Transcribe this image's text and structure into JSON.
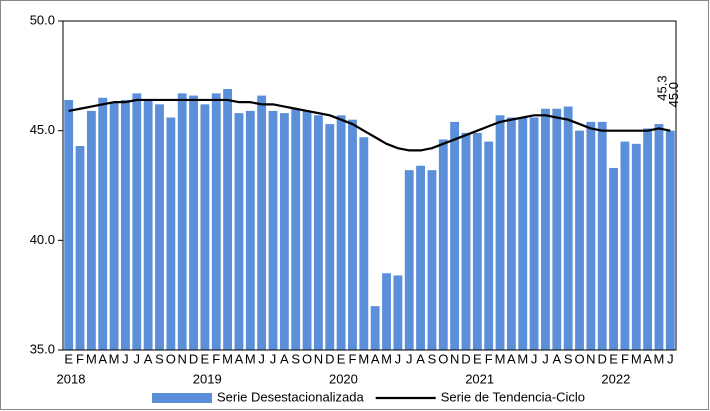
{
  "chart_data": {
    "type": "bar-line",
    "categories": [
      "E",
      "F",
      "M",
      "A",
      "M",
      "J",
      "J",
      "A",
      "S",
      "O",
      "N",
      "D",
      "E",
      "F",
      "M",
      "A",
      "M",
      "J",
      "J",
      "A",
      "S",
      "O",
      "N",
      "D",
      "E",
      "F",
      "M",
      "A",
      "M",
      "J",
      "J",
      "A",
      "S",
      "O",
      "N",
      "D",
      "E",
      "F",
      "M",
      "A",
      "M",
      "J",
      "J",
      "A",
      "S",
      "O",
      "N",
      "D",
      "E",
      "F",
      "M",
      "A",
      "M",
      "J"
    ],
    "years": [
      "2018",
      "2019",
      "2020",
      "2021",
      "2022"
    ],
    "series": [
      {
        "name": "Serie Desestacionalizada",
        "kind": "bar",
        "color": "#5b8fd9",
        "values": [
          46.4,
          44.3,
          45.9,
          46.5,
          46.3,
          46.4,
          46.7,
          46.4,
          46.2,
          45.6,
          46.7,
          46.6,
          46.2,
          46.7,
          46.9,
          45.8,
          45.9,
          46.6,
          45.9,
          45.8,
          46.0,
          45.9,
          45.7,
          45.3,
          45.7,
          45.5,
          44.7,
          37.0,
          38.5,
          38.4,
          43.2,
          43.4,
          43.2,
          44.6,
          45.4,
          44.9,
          44.9,
          44.5,
          45.7,
          45.6,
          45.6,
          45.6,
          46.0,
          46.0,
          46.1,
          45.0,
          45.4,
          45.4,
          43.3,
          44.5,
          44.4,
          45.1,
          45.3,
          45.0
        ],
        "value_labels": [
          null,
          null,
          null,
          null,
          null,
          null,
          null,
          null,
          null,
          null,
          null,
          null,
          null,
          null,
          null,
          null,
          null,
          null,
          null,
          null,
          null,
          null,
          null,
          null,
          null,
          null,
          null,
          null,
          null,
          null,
          null,
          null,
          null,
          null,
          null,
          null,
          null,
          null,
          null,
          null,
          null,
          null,
          null,
          null,
          null,
          null,
          null,
          null,
          null,
          null,
          null,
          null,
          "45.3",
          "45.0"
        ]
      },
      {
        "name": "Serie de Tendencia-Ciclo",
        "kind": "line",
        "color": "#000000",
        "values": [
          45.9,
          46.0,
          46.1,
          46.2,
          46.3,
          46.3,
          46.4,
          46.4,
          46.4,
          46.4,
          46.4,
          46.4,
          46.4,
          46.4,
          46.4,
          46.3,
          46.3,
          46.2,
          46.2,
          46.1,
          46.0,
          45.9,
          45.8,
          45.7,
          45.5,
          45.3,
          45.0,
          44.7,
          44.4,
          44.2,
          44.1,
          44.1,
          44.2,
          44.4,
          44.6,
          44.8,
          45.0,
          45.2,
          45.4,
          45.5,
          45.6,
          45.7,
          45.7,
          45.6,
          45.5,
          45.3,
          45.1,
          45.0,
          45.0,
          45.0,
          45.0,
          45.0,
          45.1,
          45.0
        ]
      }
    ],
    "ylim": [
      35,
      50
    ],
    "yticks": [
      {
        "value": 35,
        "label": "35.0"
      },
      {
        "value": 40,
        "label": "40.0"
      },
      {
        "value": 45,
        "label": "45.0"
      },
      {
        "value": 50,
        "label": "50.0"
      }
    ]
  }
}
